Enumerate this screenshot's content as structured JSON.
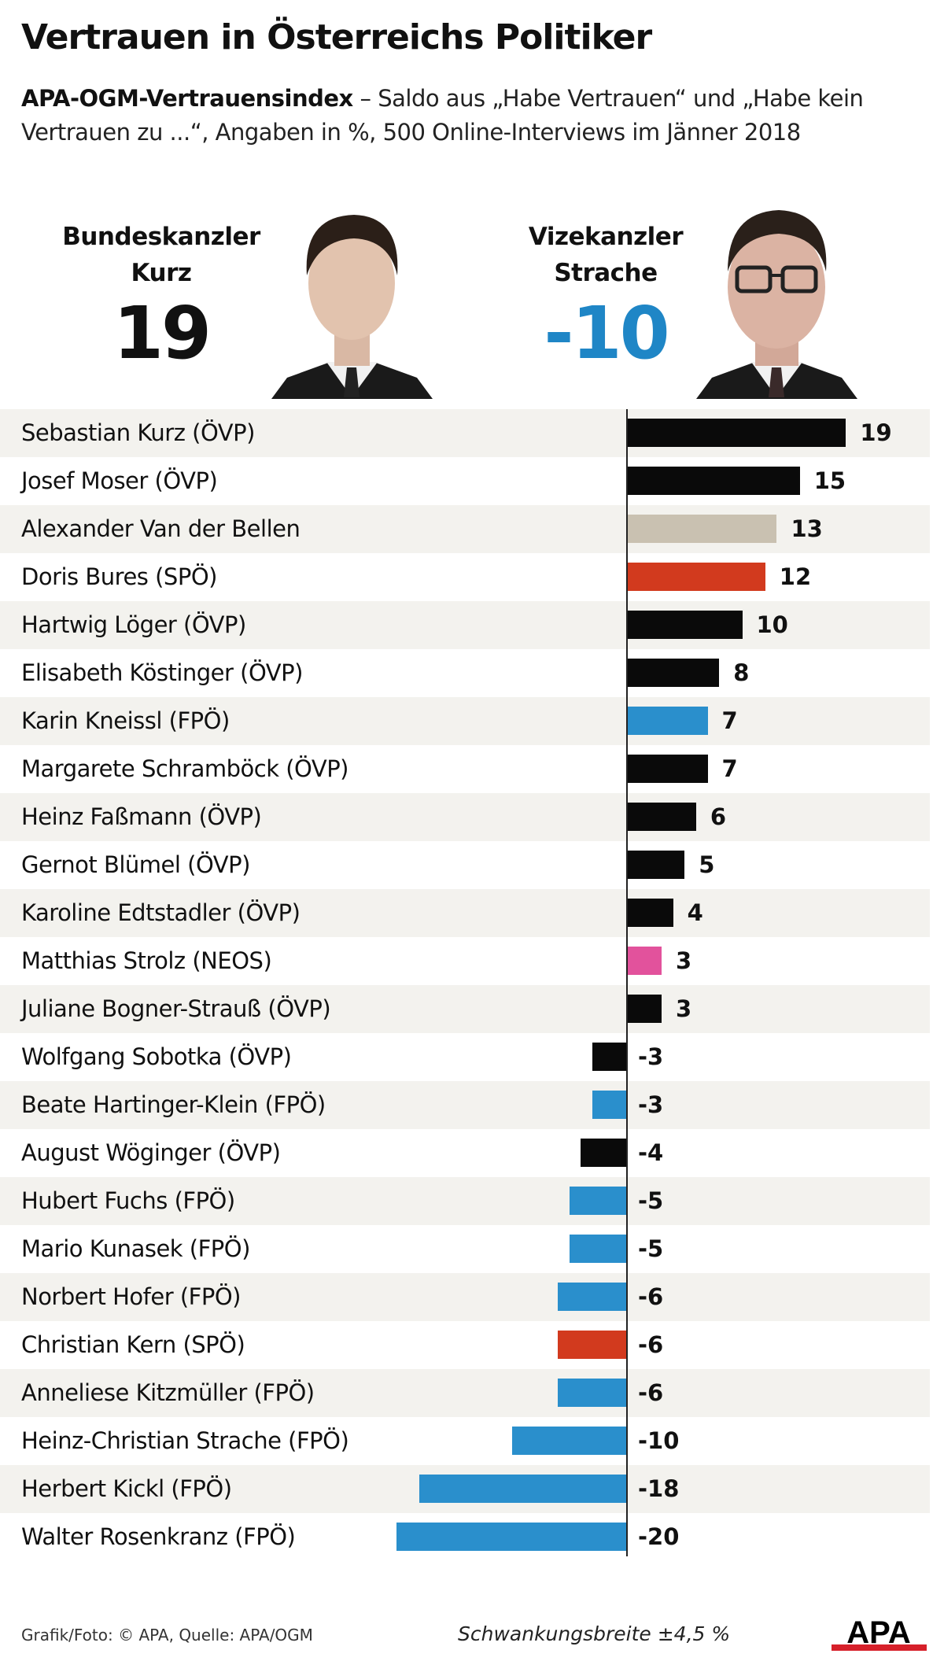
{
  "title": "Vertrauen in Österreichs Politiker",
  "subtitle_bold": "APA-OGM-Vertrauensindex",
  "subtitle_rest": " – Saldo aus „Habe Vertrauen“ und „Habe kein Vertrauen zu ...“, Angaben in %, 500 Online-Interviews im Jänner 2018",
  "highlights": [
    {
      "role": "Bundeskanzler",
      "name": "Kurz",
      "value": "19",
      "color": "#111111"
    },
    {
      "role": "Vizekanzler",
      "name": "Strache",
      "value": "-10",
      "color": "#1f86c6"
    }
  ],
  "colors": {
    "ÖVP": "#0a0a0a",
    "SPÖ": "#d23a1e",
    "FPÖ": "#2a8fcc",
    "NEOS": "#e2529c",
    "none": "#c9c1b1",
    "row_shade": "#f3f2ee"
  },
  "chart_data": {
    "type": "bar",
    "orientation": "horizontal",
    "categories": [
      "Sebastian Kurz (ÖVP)",
      "Josef Moser (ÖVP)",
      "Alexander Van der Bellen",
      "Doris Bures (SPÖ)",
      "Hartwig Löger (ÖVP)",
      "Elisabeth Köstinger (ÖVP)",
      "Karin Kneissl (FPÖ)",
      "Margarete Schramböck (ÖVP)",
      "Heinz Faßmann (ÖVP)",
      "Gernot Blümel (ÖVP)",
      "Karoline Edtstadler (ÖVP)",
      "Matthias Strolz (NEOS)",
      "Juliane Bogner-Strauß (ÖVP)",
      "Wolfgang Sobotka (ÖVP)",
      "Beate Hartinger-Klein (FPÖ)",
      "August Wöginger (ÖVP)",
      "Hubert Fuchs (FPÖ)",
      "Mario Kunasek (FPÖ)",
      "Norbert Hofer (FPÖ)",
      "Christian Kern (SPÖ)",
      "Anneliese Kitzmüller (FPÖ)",
      "Heinz-Christian Strache (FPÖ)",
      "Herbert Kickl (FPÖ)",
      "Walter Rosenkranz (FPÖ)"
    ],
    "values": [
      19,
      15,
      13,
      12,
      10,
      8,
      7,
      7,
      6,
      5,
      4,
      3,
      3,
      -3,
      -3,
      -4,
      -5,
      -5,
      -6,
      -6,
      -6,
      -10,
      -18,
      -20
    ],
    "parties": [
      "ÖVP",
      "ÖVP",
      "none",
      "SPÖ",
      "ÖVP",
      "ÖVP",
      "FPÖ",
      "ÖVP",
      "ÖVP",
      "ÖVP",
      "ÖVP",
      "NEOS",
      "ÖVP",
      "ÖVP",
      "FPÖ",
      "ÖVP",
      "FPÖ",
      "FPÖ",
      "FPÖ",
      "SPÖ",
      "FPÖ",
      "FPÖ",
      "FPÖ",
      "FPÖ"
    ],
    "xlim": [
      -20,
      19
    ],
    "grid": false
  },
  "footer": {
    "source": "Grafik/Foto: © APA, Quelle: APA/OGM",
    "margin": "Schwankungsbreite ±4,5 %",
    "logo": "APA"
  }
}
